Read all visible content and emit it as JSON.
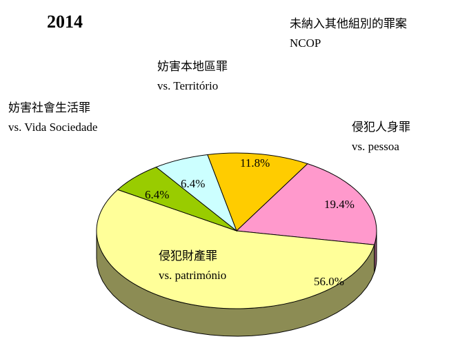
{
  "chart_data": {
    "type": "pie",
    "title": "2014",
    "categories": [
      [
        "妨害本地區罪",
        "vs. Território"
      ],
      [
        "侵犯人身罪",
        "vs. pessoa"
      ],
      [
        "侵犯財產罪",
        "vs. património"
      ],
      [
        "妨害社會生活罪",
        "vs. Vida Sociedade"
      ],
      [
        "未納入其他組別的罪案",
        "NCOP"
      ]
    ],
    "values": [
      11.8,
      19.4,
      56.0,
      6.4,
      6.4
    ],
    "value_labels": [
      "11.8%",
      "19.4%",
      "56.0%",
      "6.4%",
      "6.4%"
    ],
    "colors": [
      "#ffcc00",
      "#ff99cc",
      "#ffff99",
      "#99cc00",
      "#ccffff"
    ]
  }
}
